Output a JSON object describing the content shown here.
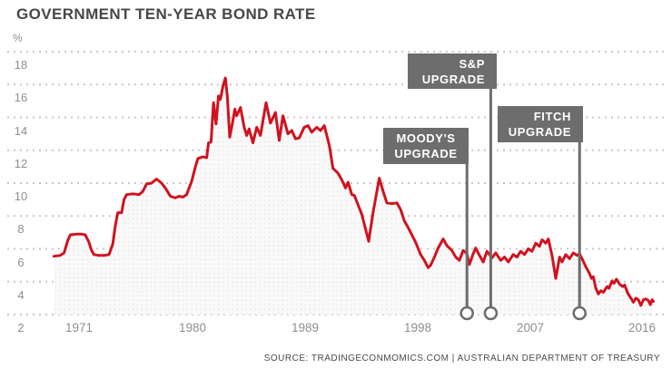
{
  "title": "GOVERNMENT TEN-YEAR BOND RATE",
  "source": "SOURCE: TRADINGECONMOMICS.COM | AUSTRALIAN DEPARTMENT OF TREASURY",
  "colors": {
    "line": "#d0121f",
    "annotation_box": "#6d6d6d",
    "title_text": "#474747",
    "tick_text": "#8f8f8f",
    "gridline": "#c8c8c8",
    "area_fill": "#f0f0f0"
  },
  "chart_data": {
    "type": "line",
    "title": "GOVERNMENT TEN-YEAR BOND RATE",
    "xlabel": "",
    "ylabel": "%",
    "ylim": [
      2,
      18
    ],
    "xlim": [
      1969,
      2017
    ],
    "yticks": [
      18,
      16,
      14,
      12,
      10,
      8,
      6,
      4,
      2
    ],
    "xticks": [
      1971,
      1980,
      1989,
      1998,
      2007,
      2016
    ],
    "grid": "dotted-horizontal",
    "legend_position": "none",
    "series": [
      {
        "name": "Government ten-year bond rate (%)",
        "points": [
          [
            1969.0,
            5.55
          ],
          [
            1969.5,
            5.6
          ],
          [
            1969.8,
            5.75
          ],
          [
            1970.1,
            6.5
          ],
          [
            1970.3,
            6.85
          ],
          [
            1970.8,
            6.9
          ],
          [
            1971.2,
            6.9
          ],
          [
            1971.5,
            6.85
          ],
          [
            1971.8,
            6.4
          ],
          [
            1972.0,
            5.9
          ],
          [
            1972.2,
            5.65
          ],
          [
            1972.6,
            5.6
          ],
          [
            1973.0,
            5.6
          ],
          [
            1973.4,
            5.65
          ],
          [
            1973.7,
            6.3
          ],
          [
            1973.9,
            7.4
          ],
          [
            1974.1,
            8.2
          ],
          [
            1974.4,
            8.2
          ],
          [
            1974.6,
            9.0
          ],
          [
            1974.8,
            9.3
          ],
          [
            1975.3,
            9.35
          ],
          [
            1975.8,
            9.3
          ],
          [
            1976.1,
            9.5
          ],
          [
            1976.4,
            9.95
          ],
          [
            1976.8,
            10.0
          ],
          [
            1977.2,
            10.25
          ],
          [
            1977.6,
            10.0
          ],
          [
            1977.9,
            9.7
          ],
          [
            1978.3,
            9.2
          ],
          [
            1978.7,
            9.1
          ],
          [
            1979.0,
            9.2
          ],
          [
            1979.3,
            9.15
          ],
          [
            1979.6,
            9.3
          ],
          [
            1980.0,
            10.1
          ],
          [
            1980.3,
            11.0
          ],
          [
            1980.5,
            11.5
          ],
          [
            1980.9,
            11.6
          ],
          [
            1981.2,
            11.55
          ],
          [
            1981.35,
            12.45
          ],
          [
            1981.55,
            12.5
          ],
          [
            1981.75,
            14.9
          ],
          [
            1981.95,
            13.6
          ],
          [
            1982.15,
            15.3
          ],
          [
            1982.3,
            15.1
          ],
          [
            1982.5,
            15.9
          ],
          [
            1982.7,
            16.4
          ],
          [
            1982.85,
            15.3
          ],
          [
            1983.05,
            12.8
          ],
          [
            1983.25,
            13.6
          ],
          [
            1983.45,
            14.5
          ],
          [
            1983.6,
            14.1
          ],
          [
            1983.9,
            14.6
          ],
          [
            1984.2,
            13.4
          ],
          [
            1984.4,
            12.9
          ],
          [
            1984.6,
            13.3
          ],
          [
            1984.9,
            12.45
          ],
          [
            1985.2,
            13.4
          ],
          [
            1985.5,
            12.9
          ],
          [
            1985.95,
            14.9
          ],
          [
            1986.3,
            13.65
          ],
          [
            1986.7,
            14.3
          ],
          [
            1987.0,
            12.6
          ],
          [
            1987.3,
            14.1
          ],
          [
            1987.7,
            13.0
          ],
          [
            1988.0,
            13.2
          ],
          [
            1988.3,
            12.7
          ],
          [
            1988.6,
            12.75
          ],
          [
            1989.0,
            13.4
          ],
          [
            1989.3,
            13.5
          ],
          [
            1989.6,
            13.1
          ],
          [
            1990.0,
            13.4
          ],
          [
            1990.3,
            13.2
          ],
          [
            1990.6,
            13.5
          ],
          [
            1991.0,
            12.3
          ],
          [
            1991.3,
            10.9
          ],
          [
            1991.7,
            10.6
          ],
          [
            1992.0,
            10.2
          ],
          [
            1992.3,
            9.7
          ],
          [
            1992.5,
            10.05
          ],
          [
            1992.8,
            9.3
          ],
          [
            1993.0,
            9.25
          ],
          [
            1993.6,
            8.1
          ],
          [
            1993.9,
            7.2
          ],
          [
            1994.15,
            6.45
          ],
          [
            1994.5,
            8.2
          ],
          [
            1994.8,
            9.5
          ],
          [
            1995.0,
            10.3
          ],
          [
            1995.3,
            9.5
          ],
          [
            1995.6,
            8.8
          ],
          [
            1996.0,
            8.75
          ],
          [
            1996.4,
            8.8
          ],
          [
            1996.7,
            8.4
          ],
          [
            1997.0,
            7.7
          ],
          [
            1997.3,
            7.3
          ],
          [
            1997.9,
            6.4
          ],
          [
            1998.3,
            5.65
          ],
          [
            1998.6,
            5.3
          ],
          [
            1998.9,
            4.85
          ],
          [
            1999.1,
            5.0
          ],
          [
            1999.4,
            5.5
          ],
          [
            1999.7,
            6.05
          ],
          [
            2000.1,
            6.6
          ],
          [
            2000.4,
            6.2
          ],
          [
            2000.8,
            5.9
          ],
          [
            2001.1,
            5.5
          ],
          [
            2001.4,
            5.3
          ],
          [
            2001.7,
            5.9
          ],
          [
            2002.0,
            5.7
          ],
          [
            2002.2,
            5.05
          ],
          [
            2002.5,
            5.7
          ],
          [
            2002.7,
            6.05
          ],
          [
            2003.0,
            5.6
          ],
          [
            2003.3,
            5.2
          ],
          [
            2003.6,
            5.85
          ],
          [
            2004.0,
            5.45
          ],
          [
            2004.3,
            5.75
          ],
          [
            2004.7,
            5.3
          ],
          [
            2005.0,
            5.5
          ],
          [
            2005.3,
            5.2
          ],
          [
            2005.7,
            5.65
          ],
          [
            2006.0,
            5.5
          ],
          [
            2006.3,
            5.85
          ],
          [
            2006.6,
            5.65
          ],
          [
            2006.9,
            6.0
          ],
          [
            2007.2,
            5.85
          ],
          [
            2007.5,
            6.35
          ],
          [
            2007.8,
            6.15
          ],
          [
            2008.0,
            6.55
          ],
          [
            2008.3,
            6.35
          ],
          [
            2008.5,
            6.6
          ],
          [
            2008.8,
            5.6
          ],
          [
            2009.1,
            4.2
          ],
          [
            2009.4,
            5.5
          ],
          [
            2009.6,
            5.2
          ],
          [
            2009.9,
            5.65
          ],
          [
            2010.2,
            5.4
          ],
          [
            2010.5,
            5.75
          ],
          [
            2010.8,
            5.6
          ],
          [
            2011.0,
            5.7
          ],
          [
            2011.2,
            5.4
          ],
          [
            2011.5,
            4.9
          ],
          [
            2011.8,
            4.5
          ],
          [
            2011.95,
            4.2
          ],
          [
            2012.1,
            4.3
          ],
          [
            2012.3,
            3.6
          ],
          [
            2012.5,
            3.25
          ],
          [
            2012.7,
            3.45
          ],
          [
            2012.9,
            3.35
          ],
          [
            2013.2,
            3.7
          ],
          [
            2013.35,
            3.6
          ],
          [
            2013.6,
            4.05
          ],
          [
            2013.75,
            3.9
          ],
          [
            2013.95,
            4.15
          ],
          [
            2014.2,
            3.85
          ],
          [
            2014.45,
            3.7
          ],
          [
            2014.6,
            3.8
          ],
          [
            2014.85,
            3.3
          ],
          [
            2015.3,
            2.75
          ],
          [
            2015.5,
            3.0
          ],
          [
            2015.7,
            2.9
          ],
          [
            2015.9,
            2.55
          ],
          [
            2016.1,
            2.9
          ],
          [
            2016.3,
            2.95
          ],
          [
            2016.5,
            2.85
          ],
          [
            2016.65,
            2.6
          ],
          [
            2016.8,
            2.9
          ],
          [
            2016.9,
            2.8
          ]
        ]
      }
    ],
    "annotations": [
      {
        "line1": "MOODY'S",
        "line2": "UPGRADE",
        "marker_year": 2002
      },
      {
        "line1": "S&P",
        "line2": "UPGRADE",
        "marker_year": 2003.9
      },
      {
        "line1": "FITCH",
        "line2": "UPGRADE",
        "marker_year": 2011
      }
    ]
  }
}
